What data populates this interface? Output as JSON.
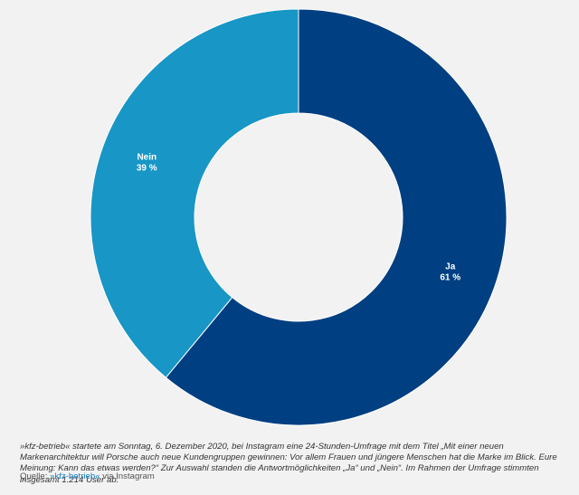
{
  "chart_data": {
    "type": "pie",
    "variant": "donut",
    "slices": [
      {
        "name": "Ja",
        "value": 61,
        "value_label": "61 %",
        "color": "#003f81"
      },
      {
        "name": "Nein",
        "value": 39,
        "value_label": "39 %",
        "color": "#1896c5"
      }
    ]
  },
  "caption": {
    "text": "»kfz-betrieb« startete am Sonntag, 6. Dezember 2020, bei Instagram eine 24-Stunden-Umfrage mit dem Titel „Mit einer neuen Markenarchitektur will Porsche auch neue Kundengruppen gewinnen: Vor allem Frauen und jüngere Menschen hat die Marke im Blick. Eure Meinung: Kann das etwas werden?“ Zur Auswahl standen die Antwortmöglichkeiten „Ja“ und „Nein“. Im Rahmen der Umfrage stimmten insgesamt 1.214 User ab."
  },
  "source": {
    "prefix": "Quelle: ",
    "link": "»kfz-betrieb«",
    "suffix": " via Instagram"
  },
  "colors": {
    "background": "#f2f2f2",
    "hole": "#ffffff"
  }
}
